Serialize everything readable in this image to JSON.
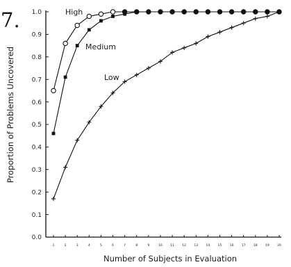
{
  "figure_number": "7.",
  "chart_data": {
    "type": "line",
    "title": "",
    "xlabel": "Number of Subjects in Evaluation",
    "ylabel": "Proportion of Problems Uncovered",
    "xlim": [
      1,
      20
    ],
    "ylim": [
      0,
      1.0
    ],
    "grid": false,
    "legend": "inline labels",
    "x_ticks": [
      1,
      2,
      3,
      4,
      5,
      6,
      7,
      8,
      9,
      10,
      11,
      12,
      13,
      14,
      15,
      16,
      17,
      18,
      19,
      20
    ],
    "x_tick_labels": [
      "1",
      "2",
      "3",
      "4",
      "5",
      "6",
      "7",
      "8",
      "9",
      "10",
      "11",
      "12",
      "13",
      "14",
      "15",
      "16",
      "17",
      "18",
      "19",
      "20"
    ],
    "y_ticks": [
      0,
      0.1,
      0.2,
      0.3,
      0.4,
      0.5,
      0.6,
      0.7,
      0.8,
      0.9,
      1.0
    ],
    "y_tick_labels": [
      "0.0",
      "0.1",
      "0.2",
      "0.3",
      "0.4",
      "0.5",
      "0.6",
      "0.7",
      "0.8",
      "0.9",
      "1.0"
    ],
    "series": [
      {
        "name": "High",
        "marker": "open-circle",
        "x": [
          1,
          2,
          3,
          4,
          5,
          6,
          7,
          8,
          9,
          10,
          11,
          12,
          13,
          14,
          15,
          16,
          17,
          18,
          19,
          20
        ],
        "y": [
          0.65,
          0.86,
          0.94,
          0.98,
          0.99,
          1.0,
          1.0,
          1.0,
          1.0,
          1.0,
          1.0,
          1.0,
          1.0,
          1.0,
          1.0,
          1.0,
          1.0,
          1.0,
          1.0,
          1.0
        ]
      },
      {
        "name": "Medium",
        "marker": "filled-square",
        "x": [
          1,
          2,
          3,
          4,
          5,
          6,
          7,
          8,
          9,
          10,
          11,
          12,
          13,
          14,
          15,
          16,
          17,
          18,
          19,
          20
        ],
        "y": [
          0.46,
          0.71,
          0.85,
          0.92,
          0.96,
          0.98,
          0.99,
          1.0,
          1.0,
          1.0,
          1.0,
          1.0,
          1.0,
          1.0,
          1.0,
          1.0,
          1.0,
          1.0,
          1.0,
          1.0
        ]
      },
      {
        "name": "Low",
        "marker": "plus",
        "x": [
          1,
          2,
          3,
          4,
          5,
          6,
          7,
          8,
          9,
          10,
          11,
          12,
          13,
          14,
          15,
          16,
          17,
          18,
          19,
          20
        ],
        "y": [
          0.17,
          0.31,
          0.43,
          0.51,
          0.58,
          0.64,
          0.69,
          0.72,
          0.75,
          0.78,
          0.82,
          0.84,
          0.86,
          0.89,
          0.91,
          0.93,
          0.95,
          0.97,
          0.98,
          1.0
        ]
      }
    ]
  }
}
